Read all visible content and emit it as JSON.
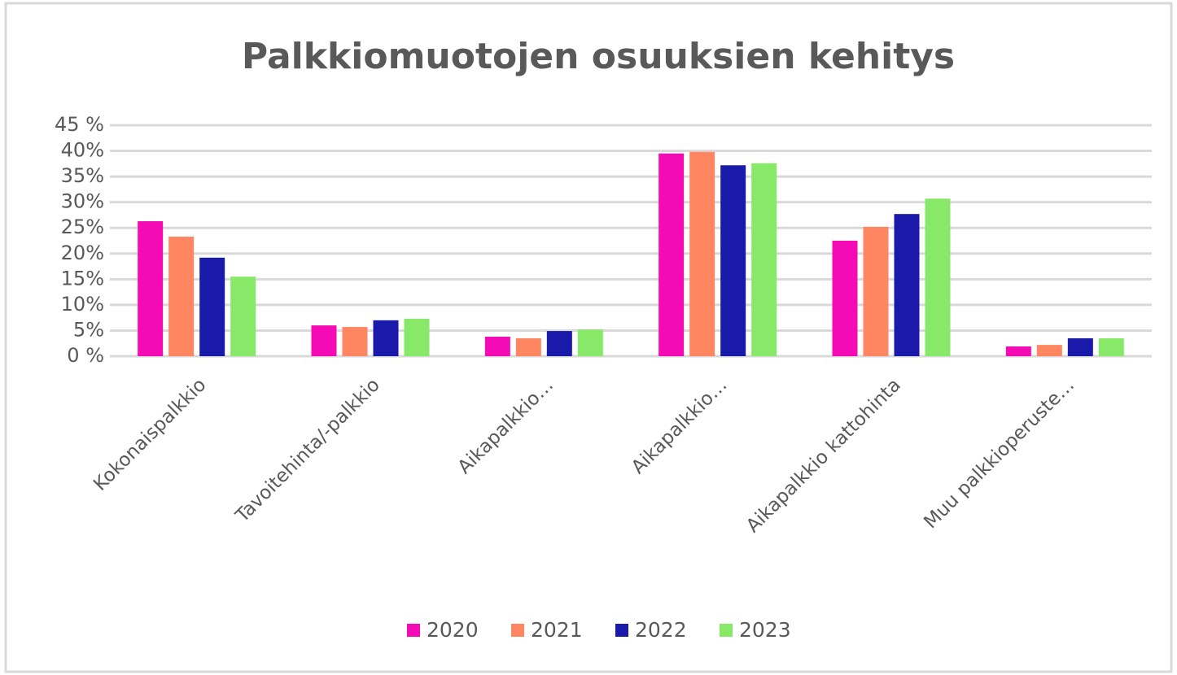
{
  "chart_data": {
    "type": "bar",
    "title": "Palkkiomuotojen osuuksien kehitys",
    "categories": [
      "Kokonaispalkkio",
      "Tavoitehinta/-palkkio",
      "Aikapalkkio…",
      "Aikapalkkio…",
      "Aikapalkkio kattohinta",
      "Muu palkkioperuste…"
    ],
    "series": [
      {
        "name": "2020",
        "color": "#f50bb5",
        "values": [
          26.3,
          6.0,
          3.8,
          39.5,
          22.5,
          1.9
        ]
      },
      {
        "name": "2021",
        "color": "#ff8660",
        "values": [
          23.3,
          5.7,
          3.5,
          39.8,
          25.2,
          2.2
        ]
      },
      {
        "name": "2022",
        "color": "#1a1aaa",
        "values": [
          19.2,
          7.0,
          4.9,
          37.2,
          27.7,
          3.5
        ]
      },
      {
        "name": "2023",
        "color": "#88e868",
        "values": [
          15.5,
          7.3,
          5.2,
          37.6,
          30.7,
          3.5
        ]
      }
    ],
    "ylim": [
      0,
      45
    ],
    "yticks": [
      {
        "value": 0,
        "label": "0 %"
      },
      {
        "value": 5,
        "label": "5%"
      },
      {
        "value": 10,
        "label": "10%"
      },
      {
        "value": 15,
        "label": "15%"
      },
      {
        "value": 20,
        "label": "20%"
      },
      {
        "value": 25,
        "label": "25%"
      },
      {
        "value": 30,
        "label": "30%"
      },
      {
        "value": 35,
        "label": "35%"
      },
      {
        "value": 40,
        "label": "40%"
      },
      {
        "value": 45,
        "label": "45 %"
      }
    ],
    "grid": true,
    "legend": "bottom"
  }
}
